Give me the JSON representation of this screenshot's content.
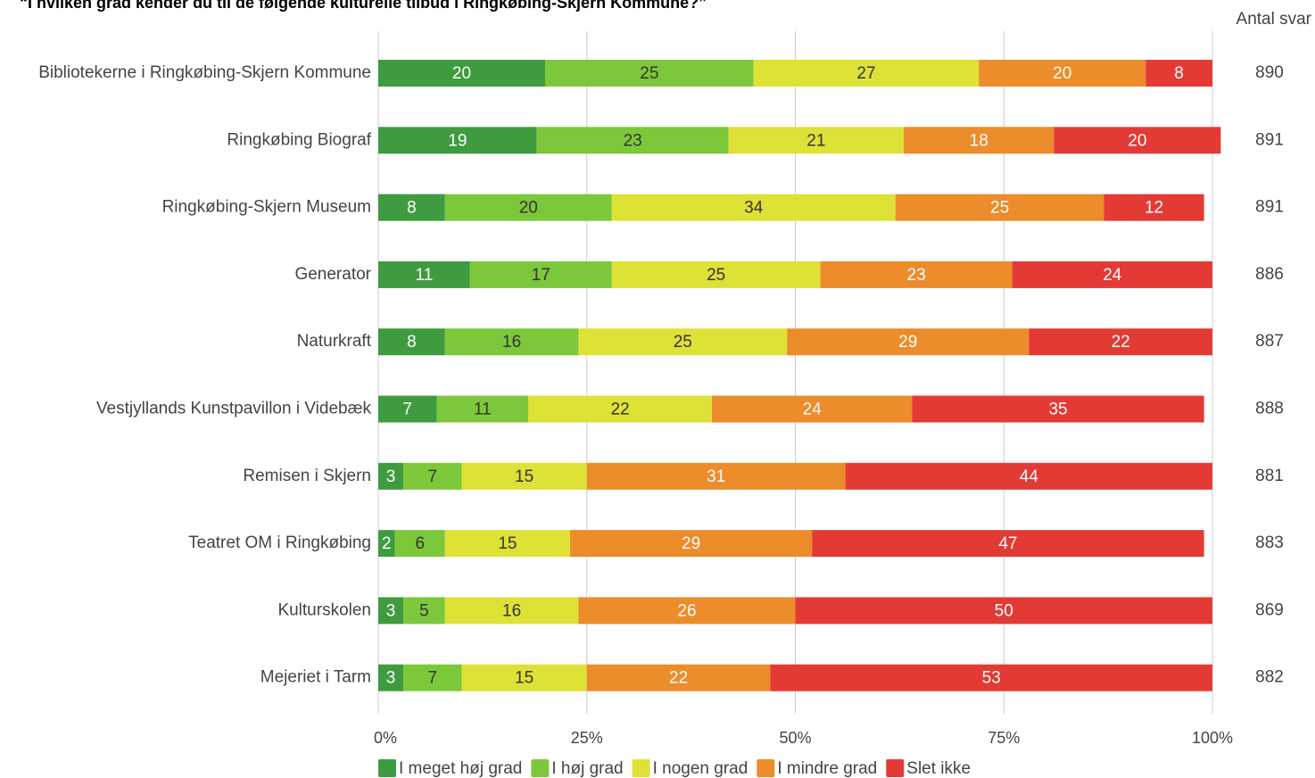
{
  "chart_data": {
    "type": "stacked_bar_horizontal",
    "title": "“I hvilken grad kender du til de følgende kulturelle tilbud i Ringkøbing-Skjern Kommune?”",
    "categories": [
      "Bibliotekerne i Ringkøbing-Skjern Kommune",
      "Ringkøbing Biograf",
      "Ringkøbing-Skjern Museum",
      "Generator",
      "Naturkraft",
      "Vestjyllands Kunstpavillon i Videbæk",
      "Remisen i Skjern",
      "Teatret OM i Ringkøbing",
      "Kulturskolen",
      "Mejeriet i Tarm"
    ],
    "series": [
      {
        "name": "I meget høj grad",
        "color": "#3f9b3f",
        "values": [
          20,
          19,
          8,
          11,
          8,
          7,
          3,
          2,
          3,
          3
        ]
      },
      {
        "name": "I høj grad",
        "color": "#7cc83a",
        "values": [
          25,
          23,
          20,
          17,
          16,
          11,
          7,
          6,
          5,
          7
        ]
      },
      {
        "name": "I nogen grad",
        "color": "#dfe236",
        "values": [
          27,
          21,
          34,
          25,
          25,
          22,
          15,
          15,
          16,
          15
        ]
      },
      {
        "name": "I mindre grad",
        "color": "#ec8c2b",
        "values": [
          20,
          18,
          25,
          23,
          29,
          24,
          31,
          29,
          26,
          22
        ]
      },
      {
        "name": "Slet ikke",
        "color": "#e43a36",
        "values": [
          8,
          20,
          12,
          24,
          22,
          35,
          44,
          47,
          50,
          53
        ]
      }
    ],
    "counts_title": "Antal svar",
    "counts": [
      890,
      891,
      891,
      886,
      887,
      888,
      881,
      883,
      869,
      882
    ],
    "xlim": [
      0,
      100
    ],
    "xticks": [
      {
        "value": 0,
        "label": "0%"
      },
      {
        "value": 25,
        "label": "25%"
      },
      {
        "value": 50,
        "label": "50%"
      },
      {
        "value": 75,
        "label": "75%"
      },
      {
        "value": 100,
        "label": "100%"
      }
    ],
    "grid": true,
    "legend": "bottom"
  }
}
